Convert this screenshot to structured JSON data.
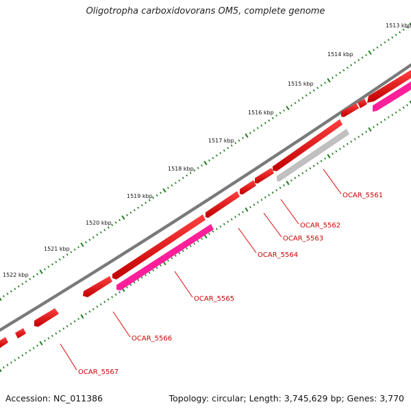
{
  "title": "Oligotropha carboxidovorans OM5, complete genome",
  "footer": {
    "accession": "Accession: NC_011386",
    "summary": "Topology: circular; Length: 3,745,629 bp; Genes: 3,770"
  },
  "scale_labels": [
    "1513 kbp",
    "1514 kbp",
    "1515 kbp",
    "1516 kbp",
    "1517 kbp",
    "1518 kbp",
    "1519 kbp",
    "1520 kbp",
    "1521 kbp",
    "1522 kbp"
  ],
  "gene_labels": [
    "OCAR_5561",
    "OCAR_5562",
    "OCAR_5563",
    "OCAR_5564",
    "OCAR_5565",
    "OCAR_5566",
    "OCAR_5567"
  ],
  "colors": {
    "cds": "#ff0000",
    "gene": "#ff1f9a",
    "pseudo": "#c0c0c0",
    "backbone": "#808080",
    "label": "#cc0000",
    "tick": "#1a7a1a"
  }
}
